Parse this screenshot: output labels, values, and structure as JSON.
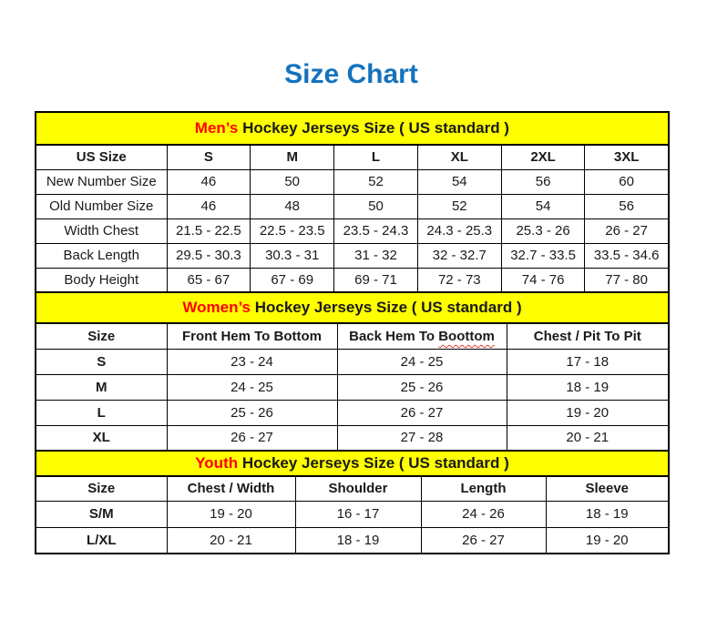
{
  "page": {
    "title": "Size Chart",
    "colors": {
      "title_blue": "#1572BD",
      "band_yellow": "#FFFF00",
      "accent_red": "#FF0000",
      "border_black": "#000000"
    }
  },
  "mens": {
    "band": {
      "highlight": "Men’s",
      "rest": "Hockey Jerseys Size ( US standard )"
    },
    "columns": [
      "US Size",
      "S",
      "M",
      "L",
      "XL",
      "2XL",
      "3XL"
    ],
    "rows": [
      {
        "label": "New Number Size",
        "values": [
          "46",
          "50",
          "52",
          "54",
          "56",
          "60"
        ]
      },
      {
        "label": "Old Number Size",
        "values": [
          "46",
          "48",
          "50",
          "52",
          "54",
          "56"
        ]
      },
      {
        "label": "Width Chest",
        "values": [
          "21.5 - 22.5",
          "22.5 - 23.5",
          "23.5 - 24.3",
          "24.3 - 25.3",
          "25.3 - 26",
          "26 - 27"
        ]
      },
      {
        "label": "Back Length",
        "values": [
          "29.5 - 30.3",
          "30.3 - 31",
          "31 - 32",
          "32 - 32.7",
          "32.7 - 33.5",
          "33.5 - 34.6"
        ]
      },
      {
        "label": "Body Height",
        "values": [
          "65 - 67",
          "67 - 69",
          "69 - 71",
          "72 - 73",
          "74 - 76",
          "77 - 80"
        ]
      }
    ]
  },
  "womens": {
    "band": {
      "highlight": "Women’s",
      "rest": "Hockey Jerseys Size ( US standard )"
    },
    "columns": {
      "size": "Size",
      "front_hem": "Front Hem To Bottom",
      "back_hem_text": "Back Hem To",
      "back_hem_wavy": "Boottom",
      "chest": "Chest / Pit To Pit"
    },
    "rows": [
      {
        "label": "S",
        "values": [
          "23 - 24",
          "24 - 25",
          "17 - 18"
        ]
      },
      {
        "label": "M",
        "values": [
          "24 - 25",
          "25 - 26",
          "18 - 19"
        ]
      },
      {
        "label": "L",
        "values": [
          "25 - 26",
          "26 - 27",
          "19 - 20"
        ]
      },
      {
        "label": "XL",
        "values": [
          "26 - 27",
          "27 - 28",
          "20 - 21"
        ]
      }
    ]
  },
  "youth": {
    "band": {
      "highlight": "Youth",
      "rest": "Hockey Jerseys Size ( US standard )"
    },
    "columns": [
      "Size",
      "Chest / Width",
      "Shoulder",
      "Length",
      "Sleeve"
    ],
    "rows": [
      {
        "label": "S/M",
        "values": [
          "19 - 20",
          "16 - 17",
          "24 - 26",
          "18 - 19"
        ]
      },
      {
        "label": "L/XL",
        "values": [
          "20 - 21",
          "18 - 19",
          "26 - 27",
          "19 - 20"
        ]
      }
    ]
  }
}
